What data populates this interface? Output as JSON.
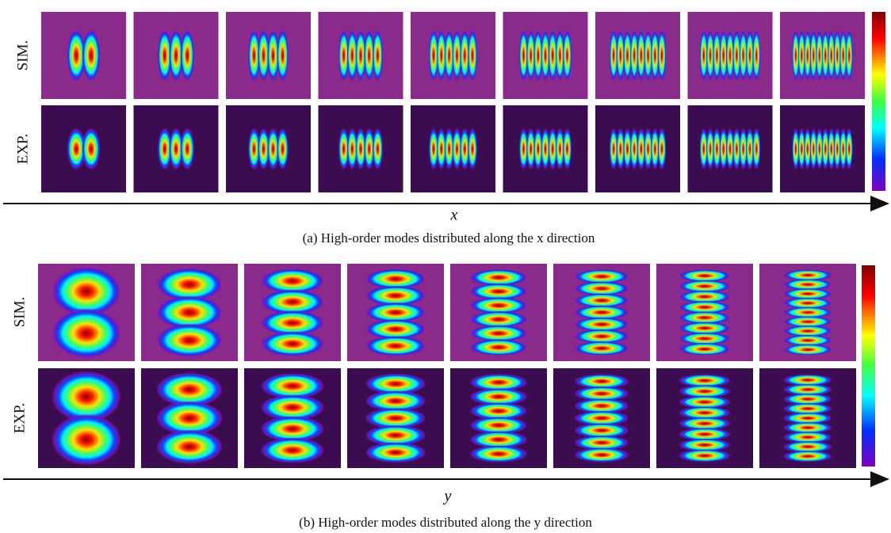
{
  "panel_a": {
    "row_labels": [
      "SIM.",
      "EXP."
    ],
    "axis_label": "x",
    "caption": "(a) High-order modes distributed along the x direction"
  },
  "panel_b": {
    "row_labels": [
      "SIM.",
      "EXP."
    ],
    "axis_label": "y",
    "caption": "(b) High-order modes distributed along the y direction"
  }
}
